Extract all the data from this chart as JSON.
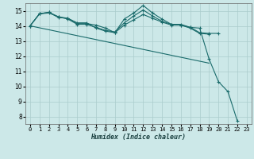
{
  "x": [
    0,
    1,
    2,
    3,
    4,
    5,
    6,
    7,
    8,
    9,
    10,
    11,
    12,
    13,
    14,
    15,
    16,
    17,
    18,
    19,
    20,
    21,
    22,
    23
  ],
  "line1": [
    14.0,
    14.8,
    14.9,
    14.6,
    14.5,
    14.2,
    14.2,
    13.85,
    13.65,
    13.55,
    14.45,
    14.85,
    15.35,
    14.85,
    14.45,
    14.1,
    14.05,
    13.9,
    13.85,
    11.8,
    10.3,
    9.65,
    7.7,
    null
  ],
  "line2": [
    14.0,
    14.8,
    14.9,
    14.55,
    14.5,
    14.15,
    14.15,
    14.05,
    13.85,
    13.55,
    14.05,
    14.4,
    14.75,
    14.5,
    14.25,
    14.05,
    14.05,
    13.85,
    13.5,
    13.45,
    null,
    null,
    null,
    null
  ],
  "line3": [
    14.0,
    14.8,
    14.85,
    14.6,
    14.45,
    14.1,
    14.1,
    13.9,
    13.7,
    13.6,
    14.2,
    14.65,
    15.05,
    14.65,
    14.3,
    14.1,
    14.1,
    13.9,
    13.55,
    13.5,
    13.5,
    null,
    null,
    null
  ],
  "line4": [
    14.0,
    13.87,
    13.74,
    13.61,
    13.48,
    13.35,
    13.22,
    13.09,
    12.96,
    12.83,
    12.7,
    12.57,
    12.44,
    12.31,
    12.18,
    12.05,
    11.92,
    11.79,
    11.66,
    11.53,
    null,
    null,
    null,
    null
  ],
  "color": "#1a6b6b",
  "bg_color": "#cce8e8",
  "grid_color": "#aacccc",
  "xlabel": "Humidex (Indice chaleur)",
  "xlim": [
    -0.5,
    23.5
  ],
  "ylim": [
    7.5,
    15.5
  ],
  "yticks": [
    8,
    9,
    10,
    11,
    12,
    13,
    14,
    15
  ],
  "xtick_labels": [
    "0",
    "1",
    "2",
    "3",
    "4",
    "5",
    "6",
    "7",
    "8",
    "9",
    "10",
    "11",
    "12",
    "13",
    "14",
    "15",
    "16",
    "17",
    "18",
    "19",
    "20",
    "21",
    "22",
    "23"
  ]
}
